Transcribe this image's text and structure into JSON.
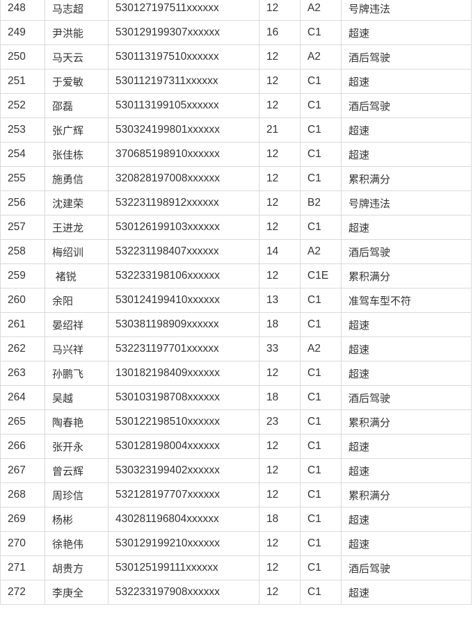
{
  "rows": [
    {
      "no": "248",
      "name": "马志超",
      "id": "530127197511xxxxxx",
      "points": "12",
      "license": "A2",
      "violation": "号牌违法"
    },
    {
      "no": "249",
      "name": "尹洪能",
      "id": "530129199307xxxxxx",
      "points": "16",
      "license": "C1",
      "violation": "超速"
    },
    {
      "no": "250",
      "name": "马天云",
      "id": "530113197510xxxxxx",
      "points": "12",
      "license": "A2",
      "violation": "酒后驾驶"
    },
    {
      "no": "251",
      "name": "于爱敏",
      "id": "530112197311xxxxxx",
      "points": "12",
      "license": "C1",
      "violation": "超速"
    },
    {
      "no": "252",
      "name": "邵磊",
      "id": "530113199105xxxxxx",
      "points": "12",
      "license": "C1",
      "violation": "酒后驾驶"
    },
    {
      "no": "253",
      "name": "张广辉",
      "id": "530324199801xxxxxx",
      "points": "21",
      "license": "C1",
      "violation": "超速"
    },
    {
      "no": "254",
      "name": "张佳栋",
      "id": "370685198910xxxxxx",
      "points": "12",
      "license": "C1",
      "violation": "超速"
    },
    {
      "no": "255",
      "name": "施勇信",
      "id": "320828197008xxxxxx",
      "points": "12",
      "license": "C1",
      "violation": "累积满分"
    },
    {
      "no": "256",
      "name": "沈建荣",
      "id": "532231198912xxxxxx",
      "points": "12",
      "license": "B2",
      "violation": "号牌违法"
    },
    {
      "no": "257",
      "name": "王进龙",
      "id": "530126199103xxxxxx",
      "points": "12",
      "license": "C1",
      "violation": "超速"
    },
    {
      "no": "258",
      "name": "梅绍训",
      "id": "532231198407xxxxxx",
      "points": "14",
      "license": "A2",
      "violation": "酒后驾驶"
    },
    {
      "no": "259",
      "name": " 褚锐",
      "id": "532233198106xxxxxx",
      "points": "12",
      "license": "C1E",
      "violation": "累积满分"
    },
    {
      "no": "260",
      "name": "余阳",
      "id": "530124199410xxxxxx",
      "points": "13",
      "license": "C1",
      "violation": "准驾车型不符"
    },
    {
      "no": "261",
      "name": "晏绍祥",
      "id": "530381198909xxxxxx",
      "points": "18",
      "license": "C1",
      "violation": "超速"
    },
    {
      "no": "262",
      "name": "马兴祥",
      "id": "532231197701xxxxxx",
      "points": "33",
      "license": "A2",
      "violation": "超速"
    },
    {
      "no": "263",
      "name": "孙鹏飞",
      "id": "130182198409xxxxxx",
      "points": "12",
      "license": "C1",
      "violation": "超速"
    },
    {
      "no": "264",
      "name": "吴越",
      "id": "530103198708xxxxxx",
      "points": "18",
      "license": "C1",
      "violation": "酒后驾驶"
    },
    {
      "no": "265",
      "name": "陶春艳",
      "id": "530122198510xxxxxx",
      "points": "23",
      "license": "C1",
      "violation": "累积满分"
    },
    {
      "no": "266",
      "name": "张开永",
      "id": "530128198004xxxxxx",
      "points": "12",
      "license": "C1",
      "violation": "超速"
    },
    {
      "no": "267",
      "name": "曾云辉",
      "id": "530323199402xxxxxx",
      "points": "12",
      "license": "C1",
      "violation": "超速"
    },
    {
      "no": "268",
      "name": "周珍信",
      "id": "532128197707xxxxxx",
      "points": "12",
      "license": "C1",
      "violation": "累积满分"
    },
    {
      "no": "269",
      "name": "杨彬",
      "id": "430281196804xxxxxx",
      "points": "18",
      "license": "C1",
      "violation": "超速"
    },
    {
      "no": "270",
      "name": "徐艳伟",
      "id": "530129199210xxxxxx",
      "points": "12",
      "license": "C1",
      "violation": "超速"
    },
    {
      "no": "271",
      "name": "胡贵方",
      "id": "530125199111xxxxxx",
      "points": "12",
      "license": "C1",
      "violation": "酒后驾驶"
    },
    {
      "no": "272",
      "name": "李庚全",
      "id": "532233197908xxxxxx",
      "points": "12",
      "license": "C1",
      "violation": "超速"
    }
  ]
}
